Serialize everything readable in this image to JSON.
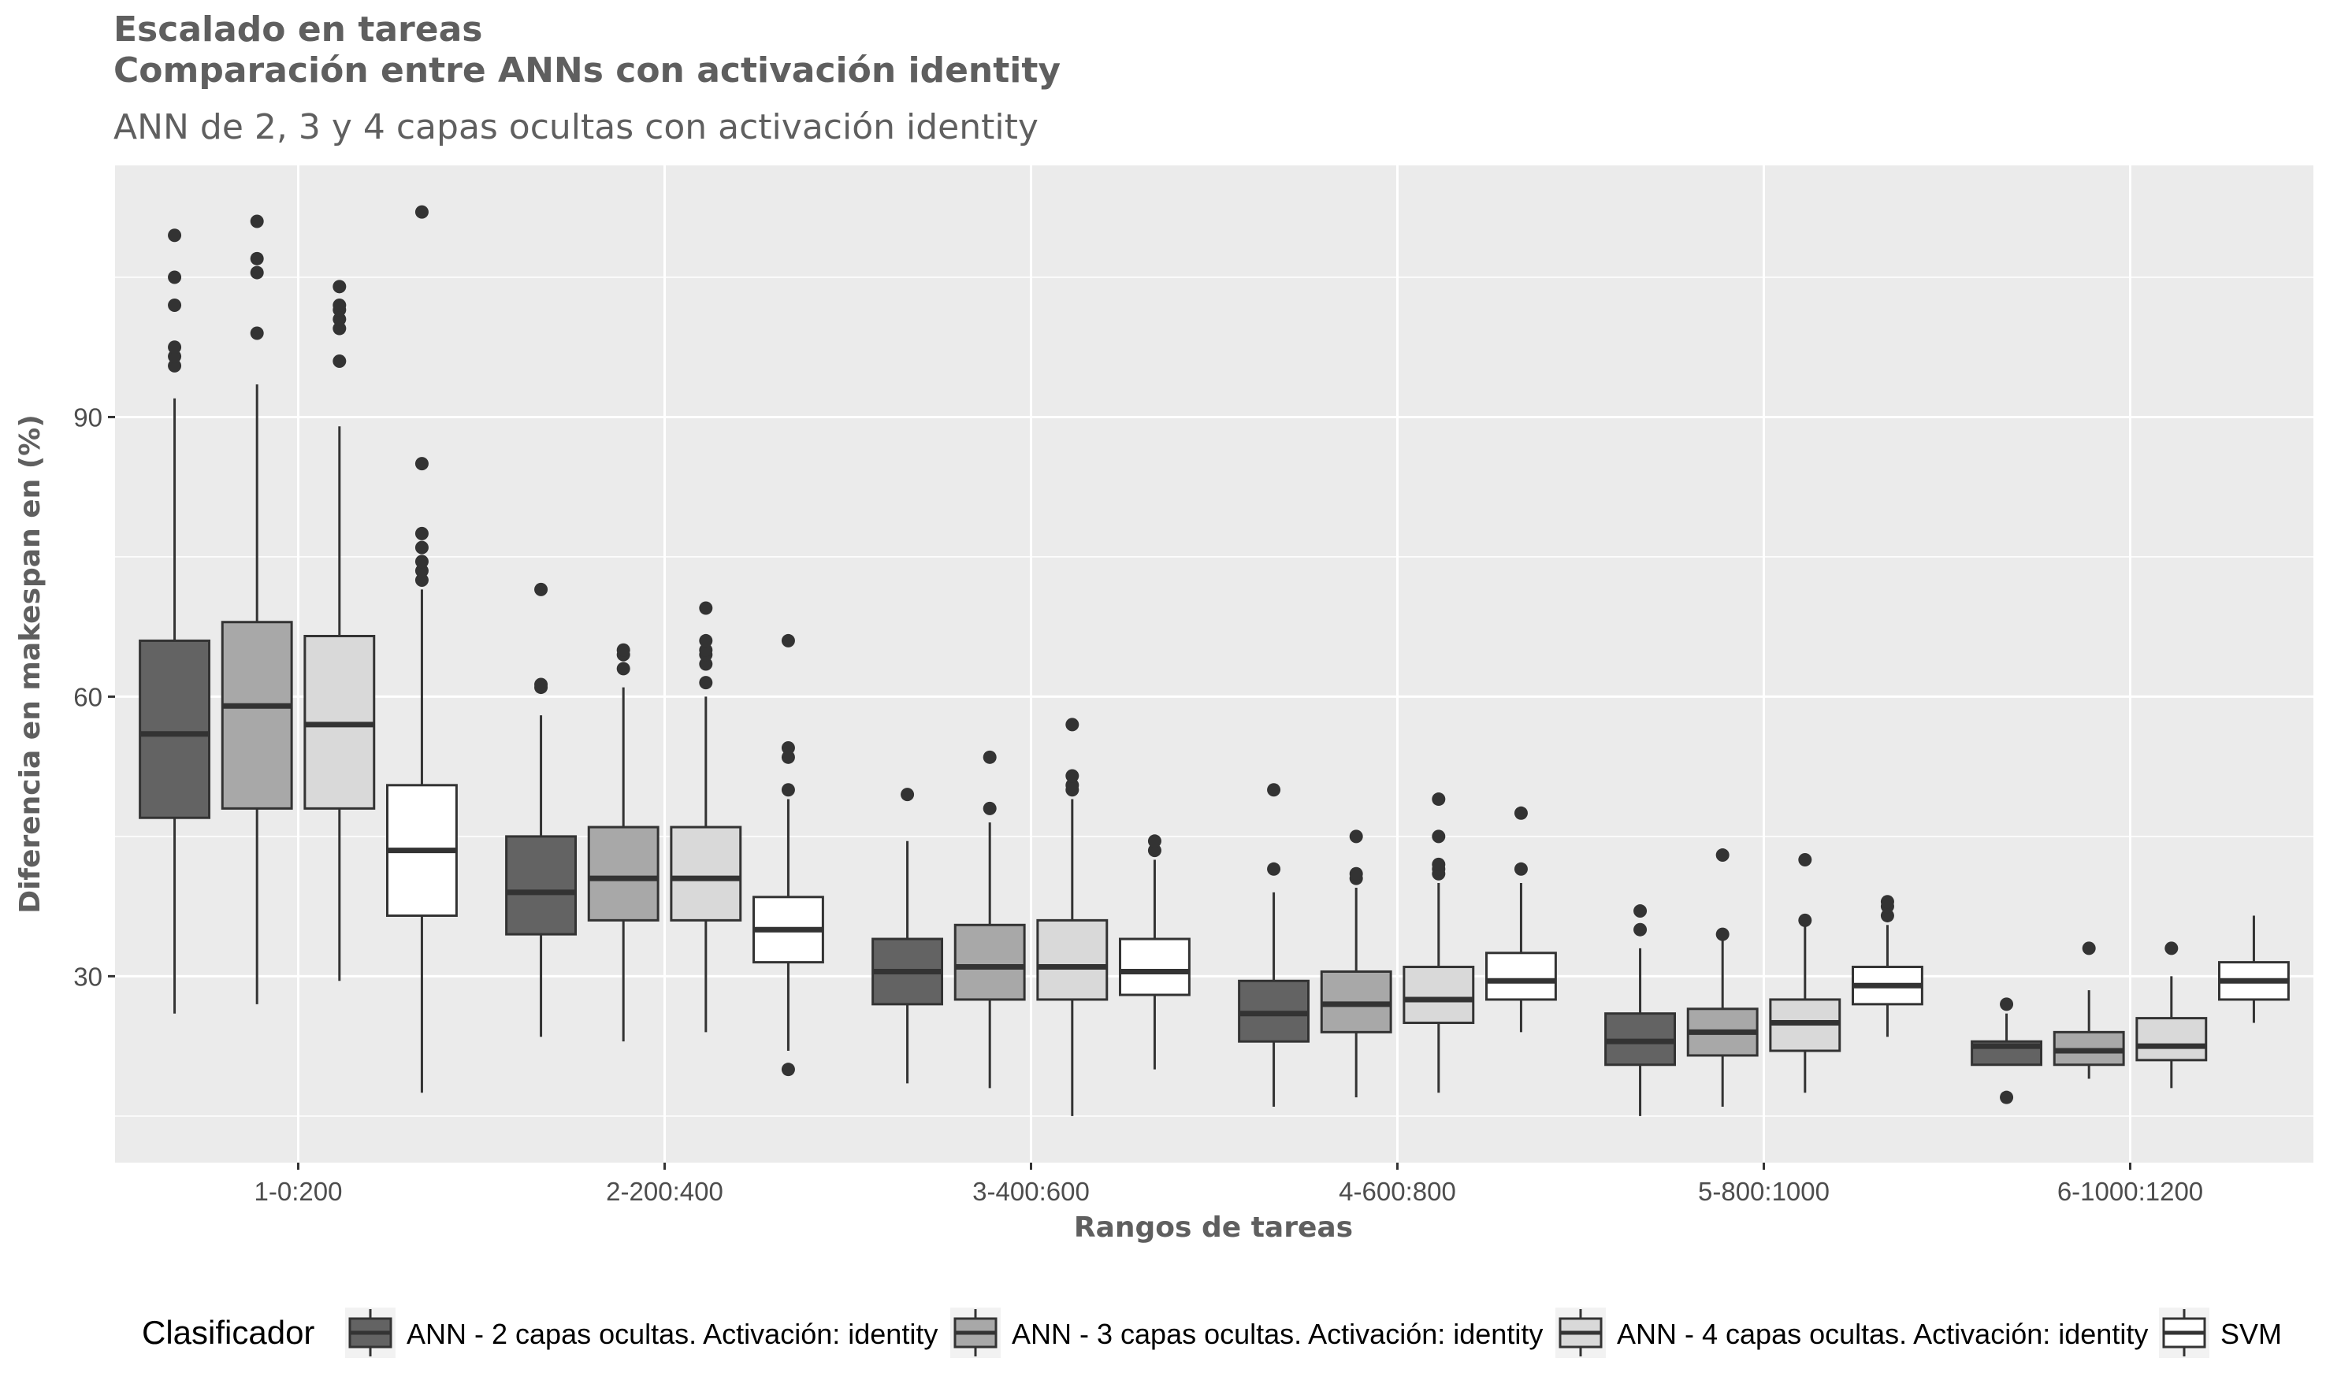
{
  "chart_data": {
    "type": "boxplot",
    "title": "Escalado en tareas",
    "title_line2": "Comparación entre ANNs con activación identity",
    "subtitle": "ANN de 2, 3 y 4 capas ocultas con activación identity",
    "xlabel": "Rangos de tareas",
    "ylabel": "Diferencia en makespan en (%)",
    "ylim": [
      10,
      117
    ],
    "yticks": [
      30,
      60,
      90
    ],
    "ytick_labels": [
      "30",
      "60",
      "90"
    ],
    "grid": true,
    "categories": [
      "1-0:200",
      "2-200:400",
      "3-400:600",
      "4-600:800",
      "5-800:1000",
      "6-1000:1200"
    ],
    "legend": {
      "title": "Clasificador",
      "position": "bottom"
    },
    "series": [
      {
        "name": "ANN - 2 capas ocultas. Activación: identity",
        "color": "#636363",
        "boxes": [
          {
            "whisker_low": 26,
            "q1": 47,
            "median": 56,
            "q3": 66,
            "whisker_high": 92,
            "outliers": [
              95.5,
              96.5,
              97.5,
              102,
              105,
              109.5
            ]
          },
          {
            "whisker_low": 23.5,
            "q1": 34.5,
            "median": 39,
            "q3": 45,
            "whisker_high": 58,
            "outliers": [
              61,
              61.3,
              71.5
            ]
          },
          {
            "whisker_low": 18.5,
            "q1": 27,
            "median": 30.5,
            "q3": 34,
            "whisker_high": 44.5,
            "outliers": [
              49.5
            ]
          },
          {
            "whisker_low": 16,
            "q1": 23,
            "median": 26,
            "q3": 29.5,
            "whisker_high": 39,
            "outliers": [
              41.5,
              50
            ]
          },
          {
            "whisker_low": 15,
            "q1": 20.5,
            "median": 23,
            "q3": 26,
            "whisker_high": 33,
            "outliers": [
              35,
              37
            ]
          },
          {
            "whisker_low": 20.5,
            "q1": 20.5,
            "median": 22.5,
            "q3": 23,
            "whisker_high": 26,
            "outliers": [
              17,
              27
            ]
          }
        ]
      },
      {
        "name": "ANN - 3 capas ocultas. Activación: identity",
        "color": "#a8a8a8",
        "boxes": [
          {
            "whisker_low": 27,
            "q1": 48,
            "median": 59,
            "q3": 68,
            "whisker_high": 93.5,
            "outliers": [
              99,
              105.5,
              107,
              111
            ]
          },
          {
            "whisker_low": 23,
            "q1": 36,
            "median": 40.5,
            "q3": 46,
            "whisker_high": 61,
            "outliers": [
              63,
              64.5,
              65
            ]
          },
          {
            "whisker_low": 18,
            "q1": 27.5,
            "median": 31,
            "q3": 35.5,
            "whisker_high": 46.5,
            "outliers": [
              48,
              53.5
            ]
          },
          {
            "whisker_low": 17,
            "q1": 24,
            "median": 27,
            "q3": 30.5,
            "whisker_high": 39.5,
            "outliers": [
              40.5,
              41,
              45
            ]
          },
          {
            "whisker_low": 16,
            "q1": 21.5,
            "median": 24,
            "q3": 26.5,
            "whisker_high": 34,
            "outliers": [
              34.5,
              43
            ]
          },
          {
            "whisker_low": 19,
            "q1": 20.5,
            "median": 22,
            "q3": 24,
            "whisker_high": 28.5,
            "outliers": [
              33
            ]
          }
        ]
      },
      {
        "name": "ANN - 4 capas ocultas. Activación: identity",
        "color": "#d9d9d9",
        "boxes": [
          {
            "whisker_low": 29.5,
            "q1": 48,
            "median": 57,
            "q3": 66.5,
            "whisker_high": 89,
            "outliers": [
              96,
              99.5,
              100.5,
              101.5,
              102,
              104
            ]
          },
          {
            "whisker_low": 24,
            "q1": 36,
            "median": 40.5,
            "q3": 46,
            "whisker_high": 60,
            "outliers": [
              61.5,
              63.5,
              64.5,
              65,
              66,
              69.5
            ]
          },
          {
            "whisker_low": 15,
            "q1": 27.5,
            "median": 31,
            "q3": 36,
            "whisker_high": 49,
            "outliers": [
              50,
              50.5,
              51.5,
              57
            ]
          },
          {
            "whisker_low": 17.5,
            "q1": 25,
            "median": 27.5,
            "q3": 31,
            "whisker_high": 40,
            "outliers": [
              41,
              41.5,
              42,
              45,
              49
            ]
          },
          {
            "whisker_low": 17.5,
            "q1": 22,
            "median": 25,
            "q3": 27.5,
            "whisker_high": 35.5,
            "outliers": [
              36,
              42.5
            ]
          },
          {
            "whisker_low": 18,
            "q1": 21,
            "median": 22.5,
            "q3": 25.5,
            "whisker_high": 30,
            "outliers": [
              33
            ]
          }
        ]
      },
      {
        "name": "SVM",
        "color": "#ffffff",
        "boxes": [
          {
            "whisker_low": 17.5,
            "q1": 36.5,
            "median": 43.5,
            "q3": 50.5,
            "whisker_high": 71.5,
            "outliers": [
              72.5,
              73.5,
              74.5,
              76,
              77.5,
              85,
              112
            ]
          },
          {
            "whisker_low": 22,
            "q1": 31.5,
            "median": 35,
            "q3": 38.5,
            "whisker_high": 49,
            "outliers": [
              20,
              50,
              53.5,
              54.5,
              66
            ]
          },
          {
            "whisker_low": 20,
            "q1": 28,
            "median": 30.5,
            "q3": 34,
            "whisker_high": 42.5,
            "outliers": [
              43.5,
              44.5
            ]
          },
          {
            "whisker_low": 24,
            "q1": 27.5,
            "median": 29.5,
            "q3": 32.5,
            "whisker_high": 40,
            "outliers": [
              41.5,
              47.5
            ]
          },
          {
            "whisker_low": 23.5,
            "q1": 27,
            "median": 29,
            "q3": 31,
            "whisker_high": 35.5,
            "outliers": [
              36.5,
              37.5,
              38
            ]
          },
          {
            "whisker_low": 25,
            "q1": 27.5,
            "median": 29.5,
            "q3": 31.5,
            "whisker_high": 36.5,
            "outliers": []
          }
        ]
      }
    ]
  }
}
